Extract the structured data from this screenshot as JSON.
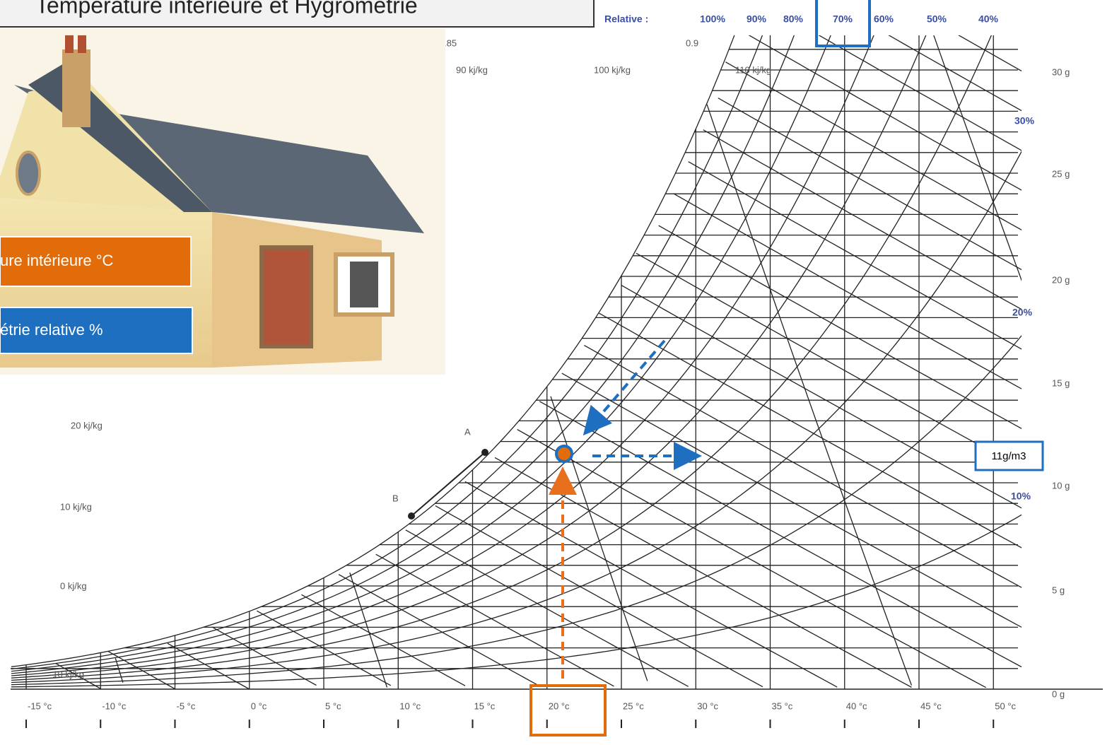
{
  "title": "Température intérieure et Hygrométrie",
  "legend_boxes": {
    "temperature": "ure intérieure °C",
    "humidity": "étrie relative %"
  },
  "chart": {
    "rh_header": "Relative :",
    "rh_labels": [
      "100%",
      "90%",
      "80%",
      "70%",
      "60%",
      "50%",
      "40%"
    ],
    "volume_labels": [
      ".85",
      "0.9"
    ],
    "enthalpy_labels": [
      "90 kj/kg",
      "100 kj/kg",
      "110 kj/kg",
      "20 kj/kg",
      "10 kj/kg",
      "0 kj/kg",
      "-10 kj/kg"
    ],
    "humidity_labels": [
      "30 g",
      "25 g",
      "20 g",
      "15 g",
      "10 g",
      "5 g",
      "0 g"
    ],
    "rh_side_labels": [
      "30%",
      "20%",
      "10%"
    ],
    "temperature_labels": [
      "-15 °c",
      "-10 °c",
      "-5 °c",
      "0 °c",
      "5 °c",
      "10 °c",
      "15 °c",
      "20 °c",
      "25 °c",
      "30 °c",
      "35 °c",
      "40 °c",
      "45 °c",
      "50 °c"
    ],
    "points": [
      "A",
      "B"
    ]
  },
  "annotation": "11g/m3"
}
